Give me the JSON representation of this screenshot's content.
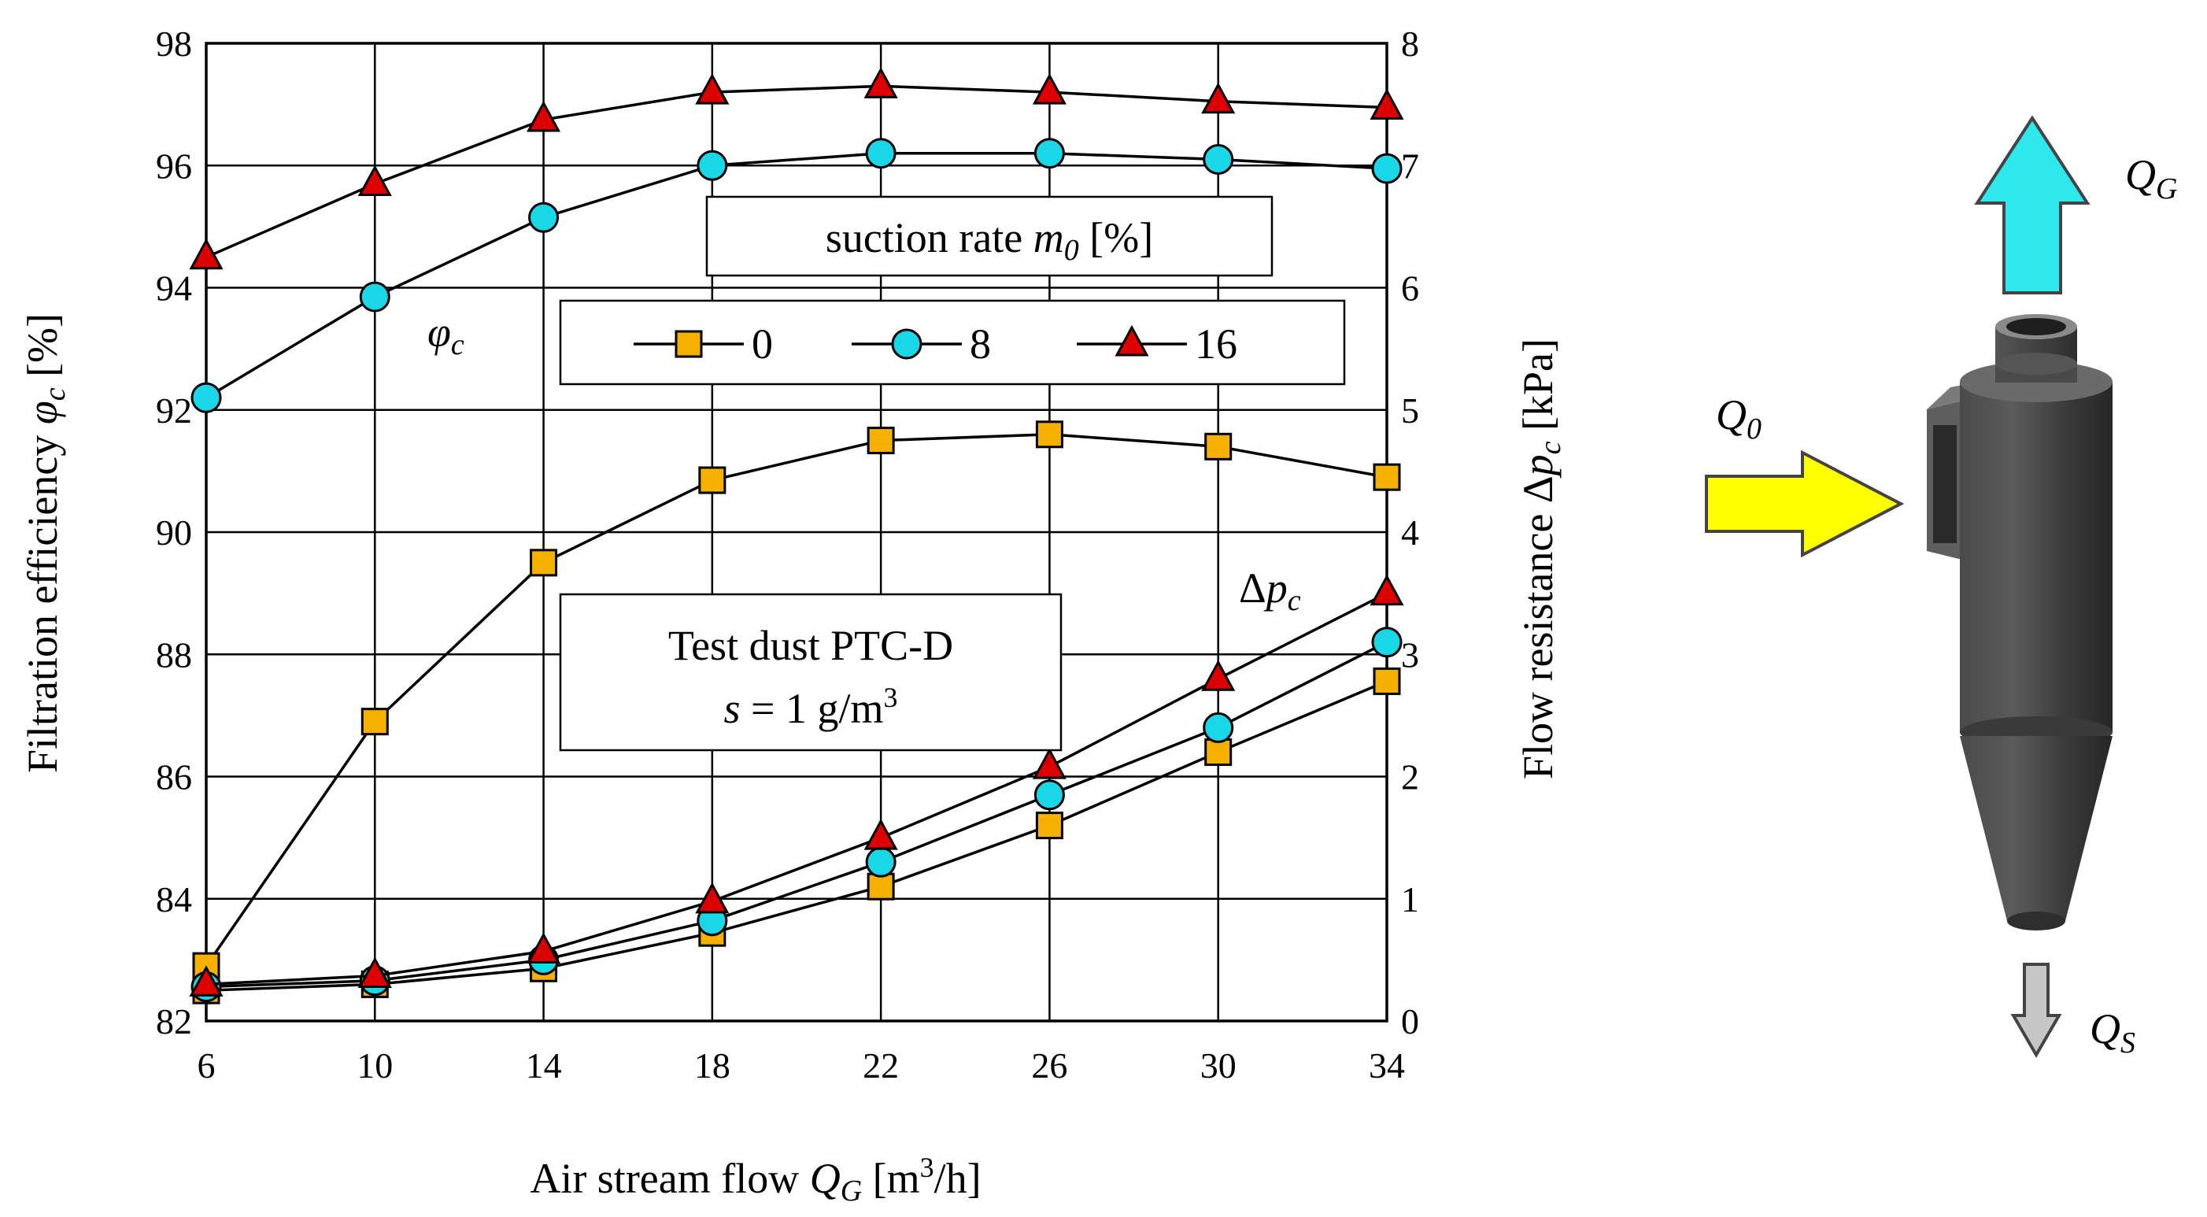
{
  "chart_data": {
    "type": "line",
    "x": [
      6,
      10,
      14,
      18,
      22,
      26,
      30,
      34
    ],
    "x_ticks": [
      "6",
      "10",
      "14",
      "18",
      "22",
      "26",
      "30",
      "34"
    ],
    "xlim": [
      6,
      34
    ],
    "y_left_ticks": [
      "82",
      "84",
      "86",
      "88",
      "90",
      "92",
      "94",
      "96",
      "98"
    ],
    "ylim_left": [
      82,
      98
    ],
    "y_right_ticks": [
      "0",
      "1",
      "2",
      "3",
      "4",
      "5",
      "6",
      "7",
      "8"
    ],
    "ylim_right": [
      0,
      8
    ],
    "grid": true,
    "series": [
      {
        "name": "0",
        "axis": "left",
        "marker": "square",
        "color": "#f5b000",
        "values": [
          82.9,
          86.9,
          89.5,
          90.85,
          91.5,
          91.6,
          91.4,
          90.9
        ]
      },
      {
        "name": "8",
        "axis": "left",
        "marker": "circle",
        "color": "#1ad7e8",
        "values": [
          92.2,
          93.85,
          95.15,
          96.0,
          96.2,
          96.2,
          96.1,
          95.95
        ]
      },
      {
        "name": "16",
        "axis": "left",
        "marker": "triangle",
        "color": "#dd0000",
        "values": [
          94.5,
          95.7,
          96.75,
          97.2,
          97.3,
          97.2,
          97.05,
          96.95
        ]
      },
      {
        "name": "0",
        "axis": "right",
        "marker": "square",
        "color": "#f5b000",
        "values": [
          0.25,
          0.3,
          0.43,
          0.72,
          1.1,
          1.6,
          2.2,
          2.78
        ]
      },
      {
        "name": "8",
        "axis": "right",
        "marker": "circle",
        "color": "#1ad7e8",
        "values": [
          0.28,
          0.33,
          0.5,
          0.82,
          1.3,
          1.85,
          2.4,
          3.1
        ]
      },
      {
        "name": "16",
        "axis": "right",
        "marker": "triangle",
        "color": "#dd0000",
        "values": [
          0.3,
          0.37,
          0.57,
          0.98,
          1.5,
          2.08,
          2.8,
          3.5
        ]
      }
    ],
    "legend_title_pre": "suction rate ",
    "legend_title_var": "m",
    "legend_title_sub": "0",
    "legend_title_post": " [%]",
    "legend_labels": [
      "0",
      "8",
      "16"
    ],
    "legend_position": "top-center",
    "ylabel_left_pre": "Filtration efficiency ",
    "ylabel_left_var": "φ",
    "ylabel_left_sub": "c",
    "ylabel_left_post": " [%]",
    "ylabel_right_pre": "Flow resistance Δ",
    "ylabel_right_var": "p",
    "ylabel_right_sub": "c",
    "ylabel_right_post": " [kPa]",
    "xlabel_pre": "Air stream flow ",
    "xlabel_var": "Q",
    "xlabel_sub": "G",
    "xlabel_post": " [m",
    "xlabel_sup": "3",
    "xlabel_tail": "/h]",
    "annotation_phi_var": "φ",
    "annotation_phi_sub": "c",
    "annotation_dp_pre": "Δ",
    "annotation_dp_var": "p",
    "annotation_dp_sub": "c",
    "info_line1": "Test dust PTC-D",
    "info_line2_var": "s",
    "info_line2_mid": " = 1 g/m",
    "info_line2_sup": "3"
  },
  "diagram": {
    "out_gas_var": "Q",
    "out_gas_sub": "G",
    "inlet_var": "Q",
    "inlet_sub": "0",
    "out_solids_var": "Q",
    "out_solids_sub": "S",
    "colors": {
      "gas_arrow": "#2ee8ee",
      "inlet_arrow": "#ffff00",
      "solids_arrow": "#c6c6c6",
      "body": "#3a3a3a"
    }
  }
}
